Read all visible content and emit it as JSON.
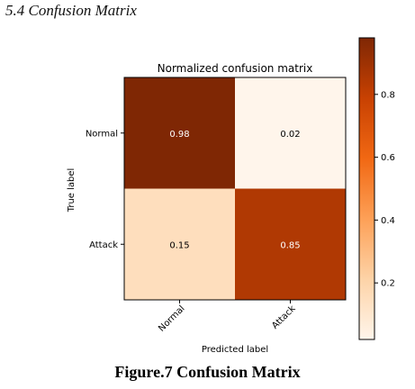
{
  "section_heading": "5.4 Confusion Matrix",
  "figure_caption": "Figure.7 Confusion Matrix",
  "colors": {
    "cmap": [
      "#fff5eb",
      "#fdd3a7",
      "#fda057",
      "#f16813",
      "#c84102",
      "#7f2704"
    ],
    "text_on_dark": "#ffffff",
    "text_on_light": "#000000",
    "axes": "#000000"
  },
  "chart_data": {
    "type": "heatmap",
    "title": "Normalized confusion matrix",
    "xlabel": "Predicted label",
    "ylabel": "True label",
    "x_categories": [
      "Normal",
      "Attack"
    ],
    "y_categories": [
      "Normal",
      "Attack"
    ],
    "values": [
      [
        0.98,
        0.02
      ],
      [
        0.15,
        0.85
      ]
    ],
    "cell_labels": [
      [
        "0.98",
        "0.02"
      ],
      [
        "0.15",
        "0.85"
      ]
    ],
    "colorbar": {
      "range": [
        0.02,
        0.98
      ],
      "ticks": [
        0.2,
        0.4,
        0.6,
        0.8
      ],
      "tick_labels": [
        "0.2",
        "0.4",
        "0.6",
        "0.8"
      ]
    }
  }
}
